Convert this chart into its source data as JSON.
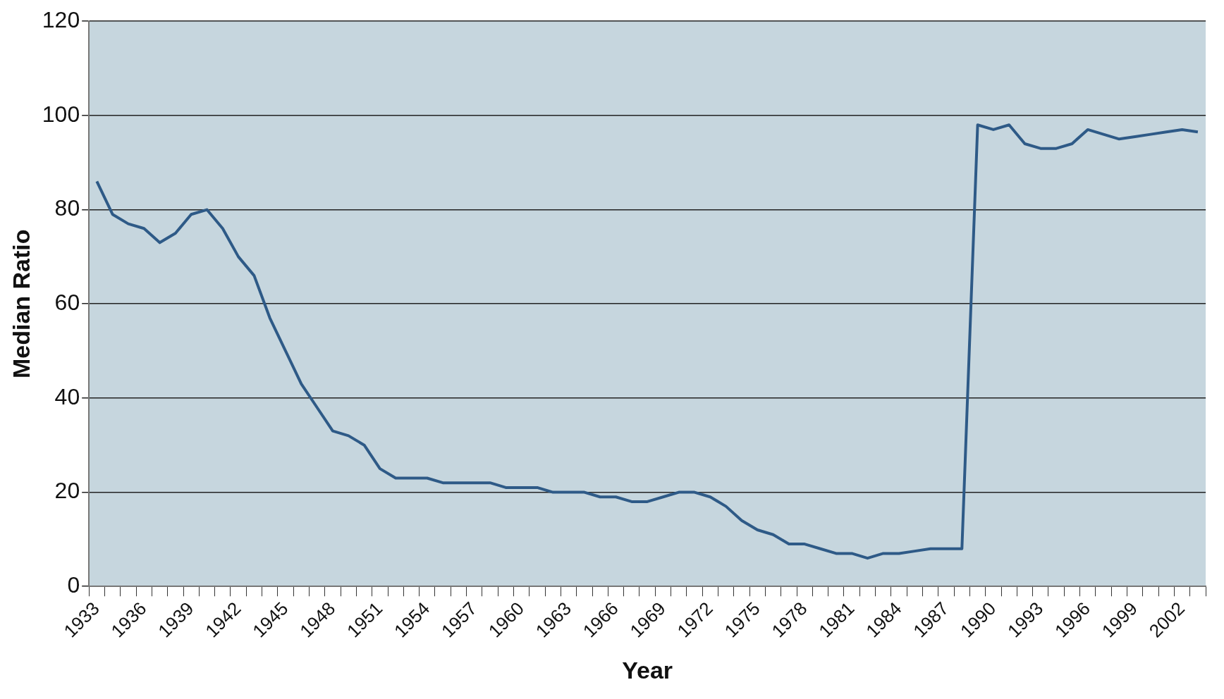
{
  "chart_data": {
    "type": "line",
    "xlabel": "Year",
    "ylabel": "Median Ratio",
    "categories": [
      "1933",
      null,
      null,
      "1936",
      null,
      null,
      "1939",
      null,
      null,
      "1942",
      null,
      null,
      "1945",
      null,
      null,
      "1948",
      null,
      null,
      "1951",
      null,
      null,
      "1954",
      null,
      null,
      "1957",
      null,
      null,
      "1960",
      null,
      null,
      "1963",
      null,
      null,
      "1966",
      null,
      null,
      "1969",
      null,
      null,
      "1972",
      null,
      null,
      "1975",
      null,
      null,
      "1978",
      null,
      null,
      "1981",
      null,
      null,
      "1984",
      null,
      null,
      "1987",
      null,
      null,
      "1990",
      null,
      null,
      "1993",
      null,
      null,
      "1996",
      null,
      null,
      "1999",
      null,
      null,
      "2002",
      null
    ],
    "series": [
      {
        "color": "#2e5a87",
        "values": [
          86,
          79,
          77,
          76,
          73,
          75,
          79,
          80,
          76,
          70,
          66,
          57,
          50,
          43,
          38,
          33,
          32,
          30,
          25,
          23,
          23,
          23,
          22,
          22,
          22,
          22,
          21,
          21,
          21,
          20,
          20,
          20,
          19,
          19,
          18,
          18,
          19,
          20,
          20,
          19,
          17,
          14,
          12,
          11,
          9,
          9,
          8,
          7,
          7,
          6,
          7,
          7,
          7.5,
          8,
          8,
          8,
          98,
          97,
          98,
          94,
          93,
          93,
          94,
          97,
          96,
          95,
          95.5,
          96,
          96.5,
          97,
          96.5
        ]
      }
    ],
    "ylim": [
      0,
      120
    ],
    "yticks": [
      0,
      20,
      40,
      60,
      80,
      100,
      120
    ],
    "grid": "y",
    "legend": false,
    "marker": "none",
    "line_style": "solid"
  }
}
